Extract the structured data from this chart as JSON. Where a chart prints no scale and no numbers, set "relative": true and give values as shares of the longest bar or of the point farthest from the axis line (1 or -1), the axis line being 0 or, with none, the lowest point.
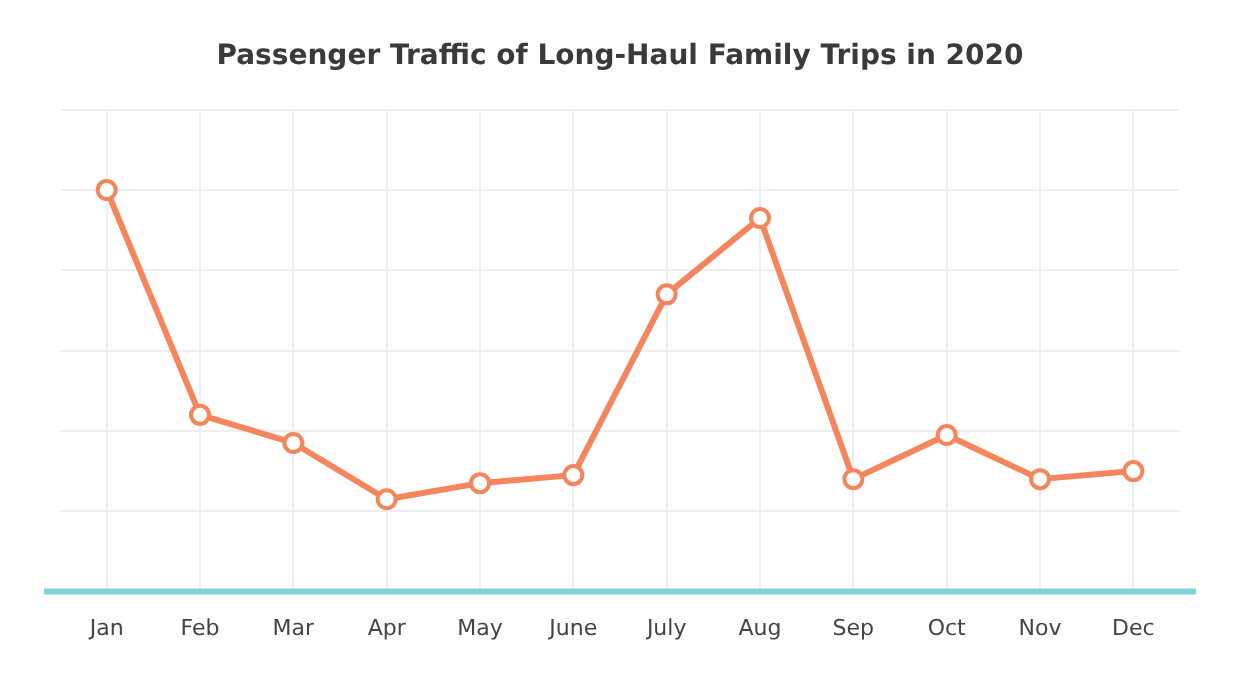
{
  "chart_data": {
    "type": "line",
    "title": "Passenger Traffic of Long-Haul Family Trips in 2020",
    "relative": true,
    "categories": [
      "Jan",
      "Feb",
      "Mar",
      "Apr",
      "May",
      "June",
      "July",
      "Aug",
      "Sep",
      "Oct",
      "Nov",
      "Dec"
    ],
    "series": [
      {
        "color": "#f4855c",
        "values": [
          1,
          0.44,
          0.37,
          0.23,
          0.27,
          0.29,
          0.74,
          0.93,
          0.28,
          0.39,
          0.28,
          0.3
        ]
      }
    ],
    "grid": true,
    "marker": "circle",
    "line_style": "solid",
    "legend": false
  }
}
